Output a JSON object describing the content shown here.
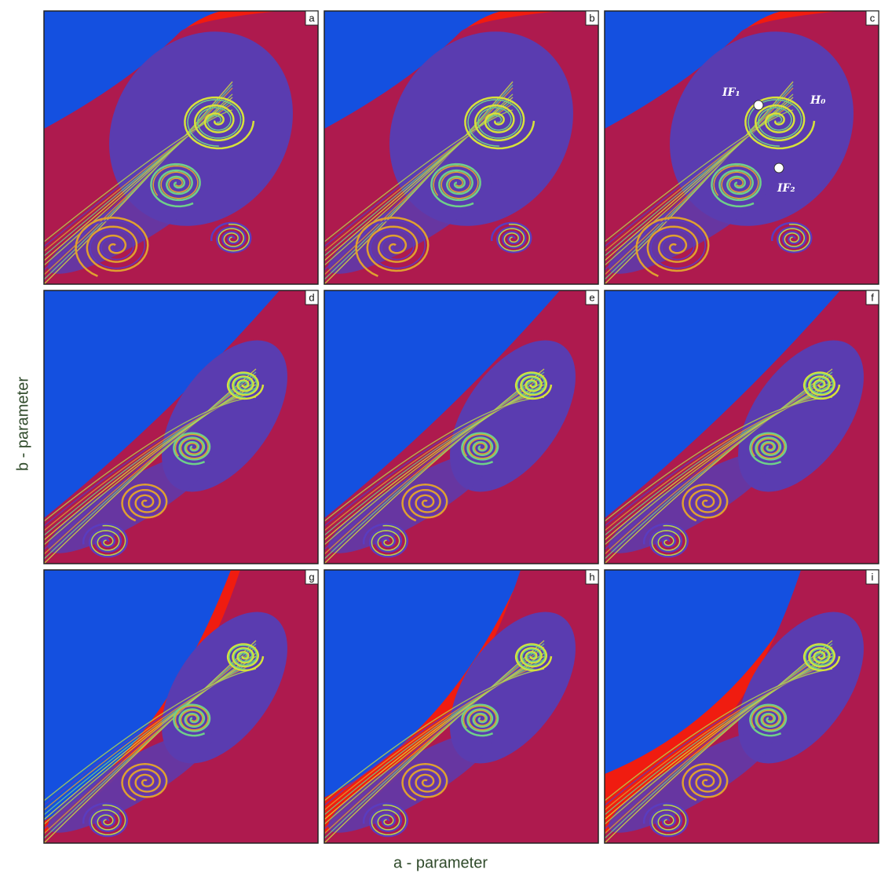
{
  "x_label": "a - parameter",
  "y_label": "b - parameter",
  "panels": [
    {
      "label": "a"
    },
    {
      "label": "b"
    },
    {
      "label": "c"
    },
    {
      "label": "d"
    },
    {
      "label": "e"
    },
    {
      "label": "f"
    },
    {
      "label": "g"
    },
    {
      "label": "h"
    },
    {
      "label": "i"
    }
  ],
  "annotations": [
    {
      "text": "IF₁"
    },
    {
      "text": "H₀"
    },
    {
      "text": "IF₂"
    }
  ]
}
